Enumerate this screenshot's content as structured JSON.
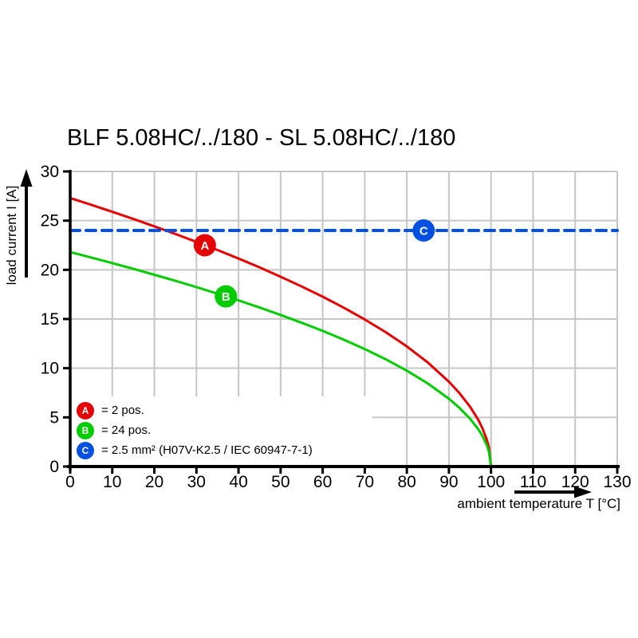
{
  "title": "BLF 5.08HC/../180 - SL 5.08HC/../180",
  "colors": {
    "background": "#ffffff",
    "axis": "#000000",
    "grid": "#c6c6c6",
    "series_a_red": "#e60000",
    "series_b_green": "#00cc00",
    "series_c_blue": "#0050e1"
  },
  "icons": {
    "y_axis_arrow": "arrow-up-icon",
    "x_axis_arrow": "arrow-right-icon"
  },
  "chart_data": {
    "type": "line",
    "title": "BLF 5.08HC/../180 - SL 5.08HC/../180",
    "xlabel": "ambient temperature T [°C]",
    "ylabel": "load current I [A]",
    "xlim": [
      0,
      130
    ],
    "ylim": [
      0,
      30
    ],
    "x_ticks": [
      0,
      10,
      20,
      30,
      40,
      50,
      60,
      70,
      80,
      90,
      100,
      110,
      120,
      130
    ],
    "y_ticks": [
      0,
      5,
      10,
      15,
      20,
      25,
      30
    ],
    "grid": true,
    "legend_position": "bottom-left-inside",
    "series": [
      {
        "name": "A",
        "label": "= 2 pos.",
        "color": "#e60000",
        "style": "solid",
        "width": 3,
        "marker": {
          "letter": "A",
          "x": 32,
          "y": 22.5
        },
        "points": [
          [
            0,
            27.3
          ],
          [
            5,
            26.61
          ],
          [
            10,
            25.9
          ],
          [
            15,
            25.17
          ],
          [
            20,
            24.42
          ],
          [
            25,
            23.64
          ],
          [
            30,
            22.84
          ],
          [
            35,
            22.01
          ],
          [
            40,
            21.15
          ],
          [
            45,
            20.25
          ],
          [
            50,
            19.3
          ],
          [
            55,
            18.31
          ],
          [
            60,
            17.27
          ],
          [
            65,
            16.15
          ],
          [
            70,
            14.95
          ],
          [
            75,
            13.65
          ],
          [
            80,
            12.21
          ],
          [
            85,
            10.57
          ],
          [
            90,
            8.63
          ],
          [
            92.5,
            7.47
          ],
          [
            95,
            6.1
          ],
          [
            97,
            4.73
          ],
          [
            98,
            3.86
          ],
          [
            99,
            2.73
          ],
          [
            99.5,
            1.93
          ],
          [
            100,
            0
          ]
        ]
      },
      {
        "name": "B",
        "label": "= 24 pos.",
        "color": "#00cc00",
        "style": "solid",
        "width": 3,
        "marker": {
          "letter": "B",
          "x": 37,
          "y": 17.3
        },
        "points": [
          [
            0,
            21.8
          ],
          [
            5,
            21.25
          ],
          [
            10,
            20.68
          ],
          [
            15,
            20.1
          ],
          [
            20,
            19.5
          ],
          [
            25,
            18.88
          ],
          [
            30,
            18.24
          ],
          [
            35,
            17.57
          ],
          [
            40,
            16.89
          ],
          [
            45,
            16.17
          ],
          [
            50,
            15.41
          ],
          [
            55,
            14.62
          ],
          [
            60,
            13.79
          ],
          [
            65,
            12.9
          ],
          [
            70,
            11.94
          ],
          [
            75,
            10.9
          ],
          [
            80,
            9.75
          ],
          [
            85,
            8.44
          ],
          [
            90,
            6.89
          ],
          [
            92.5,
            5.97
          ],
          [
            95,
            4.87
          ],
          [
            97,
            3.78
          ],
          [
            98,
            3.08
          ],
          [
            99,
            2.18
          ],
          [
            99.5,
            1.54
          ],
          [
            100,
            0
          ]
        ]
      },
      {
        "name": "C",
        "label": "= 2.5 mm² (H07V-K2.5 / IEC 60947-7-1)",
        "color": "#0050e1",
        "style": "dashed",
        "width": 4,
        "marker": {
          "letter": "C",
          "x": 84,
          "y": 24
        },
        "points": [
          [
            0,
            24
          ],
          [
            130,
            24
          ]
        ]
      }
    ]
  }
}
